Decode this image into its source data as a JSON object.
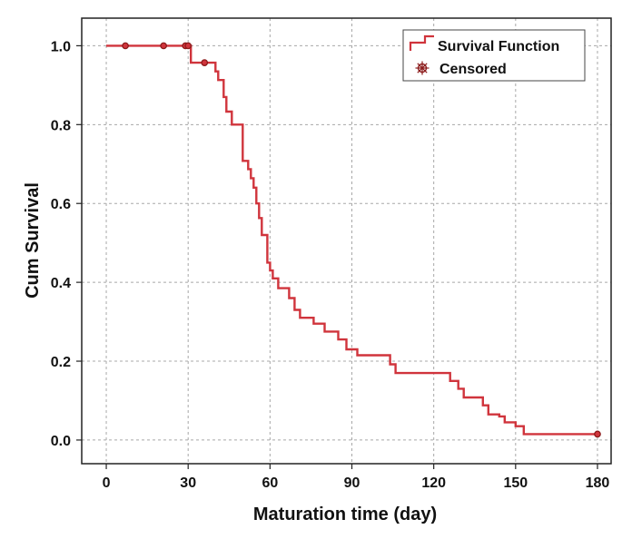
{
  "chart_data": {
    "type": "line",
    "subtype": "kaplan-meier-step",
    "title": "",
    "xlabel": "Maturation time (day)",
    "ylabel": "Cum Survival",
    "xlim": [
      -9,
      185
    ],
    "ylim": [
      -0.06,
      1.07
    ],
    "x_ticks": [
      0,
      30,
      60,
      90,
      120,
      150,
      180
    ],
    "y_ticks": [
      0.0,
      0.2,
      0.4,
      0.6,
      0.8,
      1.0
    ],
    "y_tick_labels": [
      "0.0",
      "0.2",
      "0.4",
      "0.6",
      "0.8",
      "1.0"
    ],
    "grid": true,
    "legend_position": "top-right",
    "colors": {
      "line": "#d0343c",
      "marker": "#8b1a1a",
      "grid": "#a8a8a8",
      "frame": "#222222"
    },
    "series": [
      {
        "name": "Survival Function",
        "steps": [
          [
            0,
            1.0
          ],
          [
            31,
            0.957
          ],
          [
            36,
            0.957
          ],
          [
            40,
            0.935
          ],
          [
            41,
            0.913
          ],
          [
            43,
            0.87
          ],
          [
            44,
            0.833
          ],
          [
            46,
            0.8
          ],
          [
            50,
            0.708
          ],
          [
            52,
            0.687
          ],
          [
            53,
            0.664
          ],
          [
            54,
            0.64
          ],
          [
            55,
            0.6
          ],
          [
            56,
            0.563
          ],
          [
            57,
            0.52
          ],
          [
            59,
            0.45
          ],
          [
            60,
            0.43
          ],
          [
            61,
            0.41
          ],
          [
            63,
            0.385
          ],
          [
            67,
            0.36
          ],
          [
            69,
            0.33
          ],
          [
            71,
            0.31
          ],
          [
            76,
            0.295
          ],
          [
            80,
            0.275
          ],
          [
            85,
            0.255
          ],
          [
            88,
            0.23
          ],
          [
            92,
            0.215
          ],
          [
            98,
            0.215
          ],
          [
            104,
            0.192
          ],
          [
            106,
            0.17
          ],
          [
            121,
            0.17
          ],
          [
            126,
            0.15
          ],
          [
            129,
            0.13
          ],
          [
            131,
            0.108
          ],
          [
            138,
            0.088
          ],
          [
            140,
            0.065
          ],
          [
            144,
            0.06
          ],
          [
            146,
            0.045
          ],
          [
            150,
            0.035
          ],
          [
            153,
            0.015
          ],
          [
            180,
            0.015
          ]
        ]
      }
    ],
    "censored": {
      "name": "Censored",
      "points": [
        [
          7,
          1.0
        ],
        [
          21,
          1.0
        ],
        [
          29,
          1.0
        ],
        [
          30,
          1.0
        ],
        [
          36,
          0.957
        ],
        [
          180,
          0.015
        ]
      ]
    }
  }
}
